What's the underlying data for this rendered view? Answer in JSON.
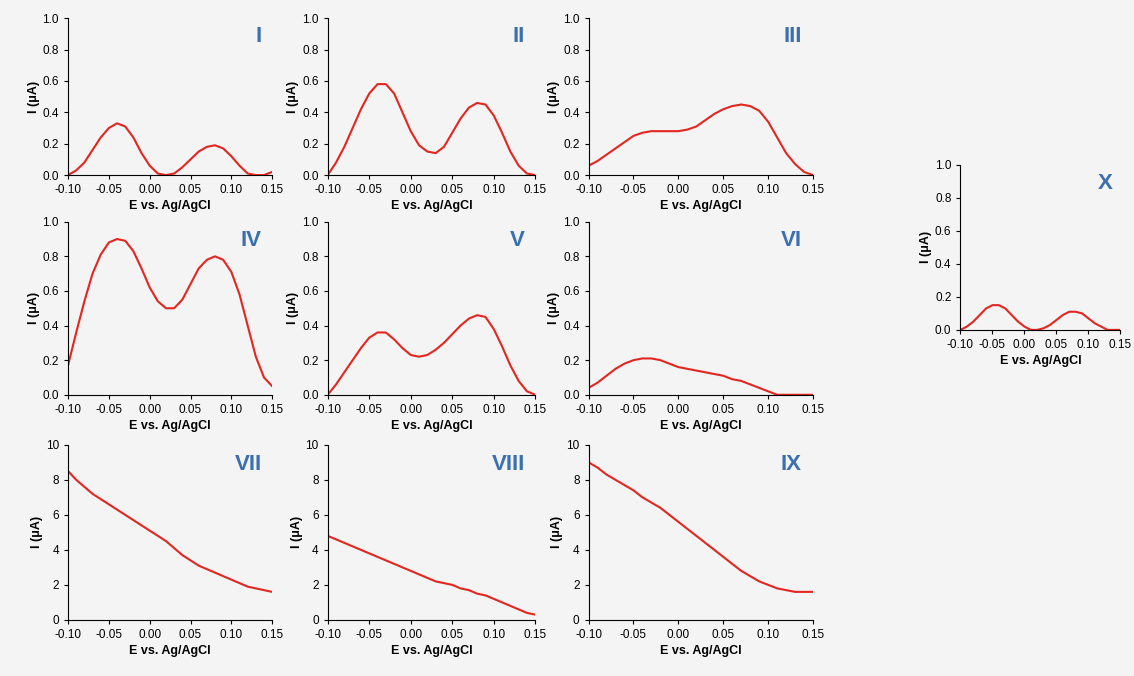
{
  "chart_data": [
    {
      "type": "line",
      "title": "I",
      "x_label": "E vs. Ag/AgCl",
      "y_label": "I (μA)",
      "color": "#e3261f",
      "x": [
        -0.1,
        -0.09,
        -0.08,
        -0.07,
        -0.06,
        -0.05,
        -0.04,
        -0.03,
        -0.02,
        -0.01,
        0.0,
        0.01,
        0.02,
        0.03,
        0.04,
        0.05,
        0.06,
        0.07,
        0.08,
        0.09,
        0.1,
        0.11,
        0.12,
        0.13,
        0.14,
        0.15
      ],
      "values": [
        0.0,
        0.03,
        0.08,
        0.16,
        0.24,
        0.3,
        0.33,
        0.31,
        0.24,
        0.14,
        0.06,
        0.01,
        0.0,
        0.01,
        0.05,
        0.1,
        0.15,
        0.18,
        0.19,
        0.17,
        0.12,
        0.06,
        0.01,
        0.0,
        0.0,
        0.02
      ],
      "xlim": [
        -0.1,
        0.15
      ],
      "ylim": [
        0.0,
        1.0
      ],
      "xticks": [
        {
          "value": -0.1,
          "label": "-0.10"
        },
        -0.05,
        {
          "value": 0.0,
          "label": "0.00"
        },
        0.05,
        {
          "value": 0.1,
          "label": "0.10"
        },
        0.15
      ],
      "yticks": [
        0.0,
        0.2,
        0.4,
        0.6,
        0.8,
        1.0
      ]
    },
    {
      "type": "line",
      "title": "II",
      "x_label": "E vs. Ag/AgCl",
      "y_label": "I (μA)",
      "color": "#e3261f",
      "x": [
        -0.1,
        -0.09,
        -0.08,
        -0.07,
        -0.06,
        -0.05,
        -0.04,
        -0.03,
        -0.02,
        -0.01,
        0.0,
        0.01,
        0.02,
        0.03,
        0.04,
        0.05,
        0.06,
        0.07,
        0.08,
        0.09,
        0.1,
        0.11,
        0.12,
        0.13,
        0.14,
        0.15
      ],
      "values": [
        0.0,
        0.08,
        0.18,
        0.3,
        0.42,
        0.52,
        0.58,
        0.58,
        0.52,
        0.4,
        0.28,
        0.19,
        0.15,
        0.14,
        0.18,
        0.27,
        0.36,
        0.43,
        0.46,
        0.45,
        0.38,
        0.27,
        0.15,
        0.06,
        0.01,
        0.0
      ],
      "xlim": [
        -0.1,
        0.15
      ],
      "ylim": [
        0.0,
        1.0
      ],
      "xticks": [
        {
          "value": -0.1,
          "label": "-0.10"
        },
        -0.05,
        {
          "value": 0.0,
          "label": "0.00"
        },
        0.05,
        {
          "value": 0.1,
          "label": "0.10"
        },
        0.15
      ],
      "yticks": [
        0.0,
        0.2,
        0.4,
        0.6,
        0.8,
        1.0
      ]
    },
    {
      "type": "line",
      "title": "III",
      "x_label": "E vs. Ag/AgCl",
      "y_label": "I (μA)",
      "color": "#e3261f",
      "x": [
        -0.1,
        -0.09,
        -0.08,
        -0.07,
        -0.06,
        -0.05,
        -0.04,
        -0.03,
        -0.02,
        -0.01,
        0.0,
        0.01,
        0.02,
        0.03,
        0.04,
        0.05,
        0.06,
        0.07,
        0.08,
        0.09,
        0.1,
        0.11,
        0.12,
        0.13,
        0.14,
        0.15
      ],
      "values": [
        0.06,
        0.09,
        0.13,
        0.17,
        0.21,
        0.25,
        0.27,
        0.28,
        0.28,
        0.28,
        0.28,
        0.29,
        0.31,
        0.35,
        0.39,
        0.42,
        0.44,
        0.45,
        0.44,
        0.41,
        0.34,
        0.24,
        0.14,
        0.07,
        0.02,
        0.0
      ],
      "xlim": [
        -0.1,
        0.15
      ],
      "ylim": [
        0.0,
        1.0
      ],
      "xticks": [
        {
          "value": -0.1,
          "label": "-0.10"
        },
        -0.05,
        {
          "value": 0.0,
          "label": "0.00"
        },
        0.05,
        {
          "value": 0.1,
          "label": "0.10"
        },
        0.15
      ],
      "yticks": [
        0.0,
        0.2,
        0.4,
        0.6,
        0.8,
        1.0
      ]
    },
    {
      "type": "line",
      "title": "IV",
      "x_label": "E vs. Ag/AgCl",
      "y_label": "I (μA)",
      "color": "#e3261f",
      "x": [
        -0.1,
        -0.09,
        -0.08,
        -0.07,
        -0.06,
        -0.05,
        -0.04,
        -0.03,
        -0.02,
        -0.01,
        0.0,
        0.01,
        0.02,
        0.03,
        0.04,
        0.05,
        0.06,
        0.07,
        0.08,
        0.09,
        0.1,
        0.11,
        0.12,
        0.13,
        0.14,
        0.15
      ],
      "values": [
        0.17,
        0.36,
        0.54,
        0.7,
        0.81,
        0.88,
        0.9,
        0.89,
        0.83,
        0.73,
        0.62,
        0.54,
        0.5,
        0.5,
        0.55,
        0.64,
        0.73,
        0.78,
        0.8,
        0.78,
        0.71,
        0.58,
        0.4,
        0.22,
        0.1,
        0.05
      ],
      "xlim": [
        -0.1,
        0.15
      ],
      "ylim": [
        0.0,
        1.0
      ],
      "xticks": [
        {
          "value": -0.1,
          "label": "-0.10"
        },
        -0.05,
        {
          "value": 0.0,
          "label": "0.00"
        },
        0.05,
        {
          "value": 0.1,
          "label": "0.10"
        },
        0.15
      ],
      "yticks": [
        0.0,
        0.2,
        0.4,
        0.6,
        0.8,
        1.0
      ]
    },
    {
      "type": "line",
      "title": "V",
      "x_label": "E vs. Ag/AgCl",
      "y_label": "I (μA)",
      "color": "#e3261f",
      "x": [
        -0.1,
        -0.09,
        -0.08,
        -0.07,
        -0.06,
        -0.05,
        -0.04,
        -0.03,
        -0.02,
        -0.01,
        0.0,
        0.01,
        0.02,
        0.03,
        0.04,
        0.05,
        0.06,
        0.07,
        0.08,
        0.09,
        0.1,
        0.11,
        0.12,
        0.13,
        0.14,
        0.15
      ],
      "values": [
        0.0,
        0.06,
        0.13,
        0.2,
        0.27,
        0.33,
        0.36,
        0.36,
        0.32,
        0.27,
        0.23,
        0.22,
        0.23,
        0.26,
        0.3,
        0.35,
        0.4,
        0.44,
        0.46,
        0.45,
        0.38,
        0.28,
        0.17,
        0.08,
        0.02,
        0.0
      ],
      "xlim": [
        -0.1,
        0.15
      ],
      "ylim": [
        0.0,
        1.0
      ],
      "xticks": [
        {
          "value": -0.1,
          "label": "-0.10"
        },
        -0.05,
        {
          "value": 0.0,
          "label": "0.00"
        },
        0.05,
        {
          "value": 0.1,
          "label": "0.10"
        },
        0.15
      ],
      "yticks": [
        0.0,
        0.2,
        0.4,
        0.6,
        0.8,
        1.0
      ]
    },
    {
      "type": "line",
      "title": "VI",
      "x_label": "E vs. Ag/AgCl",
      "y_label": "I (μA)",
      "color": "#e3261f",
      "x": [
        -0.1,
        -0.09,
        -0.08,
        -0.07,
        -0.06,
        -0.05,
        -0.04,
        -0.03,
        -0.02,
        -0.01,
        0.0,
        0.01,
        0.02,
        0.03,
        0.04,
        0.05,
        0.06,
        0.07,
        0.08,
        0.09,
        0.1,
        0.11,
        0.12,
        0.13,
        0.14,
        0.15
      ],
      "values": [
        0.04,
        0.07,
        0.11,
        0.15,
        0.18,
        0.2,
        0.21,
        0.21,
        0.2,
        0.18,
        0.16,
        0.15,
        0.14,
        0.13,
        0.12,
        0.11,
        0.09,
        0.08,
        0.06,
        0.04,
        0.02,
        0.0,
        0.0,
        0.0,
        0.0,
        0.0
      ],
      "xlim": [
        -0.1,
        0.15
      ],
      "ylim": [
        0.0,
        1.0
      ],
      "xticks": [
        {
          "value": -0.1,
          "label": "-0.10"
        },
        -0.05,
        {
          "value": 0.0,
          "label": "0.00"
        },
        0.05,
        {
          "value": 0.1,
          "label": "0.10"
        },
        0.15
      ],
      "yticks": [
        0.0,
        0.2,
        0.4,
        0.6,
        0.8,
        1.0
      ]
    },
    {
      "type": "line",
      "title": "VII",
      "x_label": "E vs. Ag/AgCl",
      "y_label": "I (μA)",
      "color": "#e3261f",
      "x": [
        -0.1,
        -0.09,
        -0.08,
        -0.07,
        -0.06,
        -0.05,
        -0.04,
        -0.03,
        -0.02,
        -0.01,
        0.0,
        0.01,
        0.02,
        0.03,
        0.04,
        0.05,
        0.06,
        0.07,
        0.08,
        0.09,
        0.1,
        0.11,
        0.12,
        0.13,
        0.14,
        0.15
      ],
      "values": [
        8.5,
        8.0,
        7.6,
        7.2,
        6.9,
        6.6,
        6.3,
        6.0,
        5.7,
        5.4,
        5.1,
        4.8,
        4.5,
        4.1,
        3.7,
        3.4,
        3.1,
        2.9,
        2.7,
        2.5,
        2.3,
        2.1,
        1.9,
        1.8,
        1.7,
        1.6
      ],
      "xlim": [
        -0.1,
        0.15
      ],
      "ylim": [
        0,
        10
      ],
      "xticks": [
        {
          "value": -0.1,
          "label": "-0.10"
        },
        -0.05,
        {
          "value": 0.0,
          "label": "0.00"
        },
        0.05,
        {
          "value": 0.1,
          "label": "0.10"
        },
        0.15
      ],
      "yticks": [
        0,
        2,
        4,
        6,
        8,
        10
      ]
    },
    {
      "type": "line",
      "title": "VIII",
      "x_label": "E vs. Ag/AgCl",
      "y_label": "I (μA)",
      "color": "#e3261f",
      "x": [
        -0.1,
        -0.09,
        -0.08,
        -0.07,
        -0.06,
        -0.05,
        -0.04,
        -0.03,
        -0.02,
        -0.01,
        0.0,
        0.01,
        0.02,
        0.03,
        0.04,
        0.05,
        0.06,
        0.07,
        0.08,
        0.09,
        0.1,
        0.11,
        0.12,
        0.13,
        0.14,
        0.15
      ],
      "values": [
        4.8,
        4.6,
        4.4,
        4.2,
        4.0,
        3.8,
        3.6,
        3.4,
        3.2,
        3.0,
        2.8,
        2.6,
        2.4,
        2.2,
        2.1,
        2.0,
        1.8,
        1.7,
        1.5,
        1.4,
        1.2,
        1.0,
        0.8,
        0.6,
        0.4,
        0.3
      ],
      "xlim": [
        -0.1,
        0.15
      ],
      "ylim": [
        0,
        10
      ],
      "xticks": [
        {
          "value": -0.1,
          "label": "-0.10"
        },
        -0.05,
        {
          "value": 0.0,
          "label": "0.00"
        },
        0.05,
        {
          "value": 0.1,
          "label": "0.10"
        },
        0.15
      ],
      "yticks": [
        0,
        2,
        4,
        6,
        8,
        10
      ]
    },
    {
      "type": "line",
      "title": "IX",
      "x_label": "E vs. Ag/AgCl",
      "y_label": "I (μA)",
      "color": "#e3261f",
      "x": [
        -0.1,
        -0.09,
        -0.08,
        -0.07,
        -0.06,
        -0.05,
        -0.04,
        -0.03,
        -0.02,
        -0.01,
        0.0,
        0.01,
        0.02,
        0.03,
        0.04,
        0.05,
        0.06,
        0.07,
        0.08,
        0.09,
        0.1,
        0.11,
        0.12,
        0.13,
        0.14,
        0.15
      ],
      "values": [
        9.0,
        8.7,
        8.3,
        8.0,
        7.7,
        7.4,
        7.0,
        6.7,
        6.4,
        6.0,
        5.6,
        5.2,
        4.8,
        4.4,
        4.0,
        3.6,
        3.2,
        2.8,
        2.5,
        2.2,
        2.0,
        1.8,
        1.7,
        1.6,
        1.6,
        1.6
      ],
      "xlim": [
        -0.1,
        0.15
      ],
      "ylim": [
        0,
        10
      ],
      "xticks": [
        {
          "value": -0.1,
          "label": "-0.10"
        },
        -0.05,
        {
          "value": 0.0,
          "label": "0.00"
        },
        0.05,
        {
          "value": 0.1,
          "label": "0.10"
        },
        0.15
      ],
      "yticks": [
        0,
        2,
        4,
        6,
        8,
        10
      ]
    },
    {
      "type": "line",
      "title": "X",
      "x_label": "E vs. Ag/AgCl",
      "y_label": "I (μA)",
      "color": "#e3261f",
      "x": [
        -0.1,
        -0.09,
        -0.08,
        -0.07,
        -0.06,
        -0.05,
        -0.04,
        -0.03,
        -0.02,
        -0.01,
        0.0,
        0.01,
        0.02,
        0.03,
        0.04,
        0.05,
        0.06,
        0.07,
        0.08,
        0.09,
        0.1,
        0.11,
        0.12,
        0.13,
        0.14,
        0.15
      ],
      "values": [
        0.0,
        0.02,
        0.05,
        0.09,
        0.13,
        0.15,
        0.15,
        0.13,
        0.09,
        0.05,
        0.02,
        0.0,
        0.0,
        0.01,
        0.03,
        0.06,
        0.09,
        0.11,
        0.11,
        0.1,
        0.07,
        0.04,
        0.02,
        0.0,
        0.0,
        0.0
      ],
      "xlim": [
        -0.1,
        0.15
      ],
      "ylim": [
        0.0,
        1.0
      ],
      "xticks": [
        {
          "value": -0.1,
          "label": "-0.10"
        },
        -0.05,
        {
          "value": 0.0,
          "label": "0.00"
        },
        0.05,
        {
          "value": 0.1,
          "label": "0.10"
        },
        0.15
      ],
      "yticks": [
        0.0,
        0.2,
        0.4,
        0.6,
        0.8,
        1.0
      ]
    }
  ]
}
